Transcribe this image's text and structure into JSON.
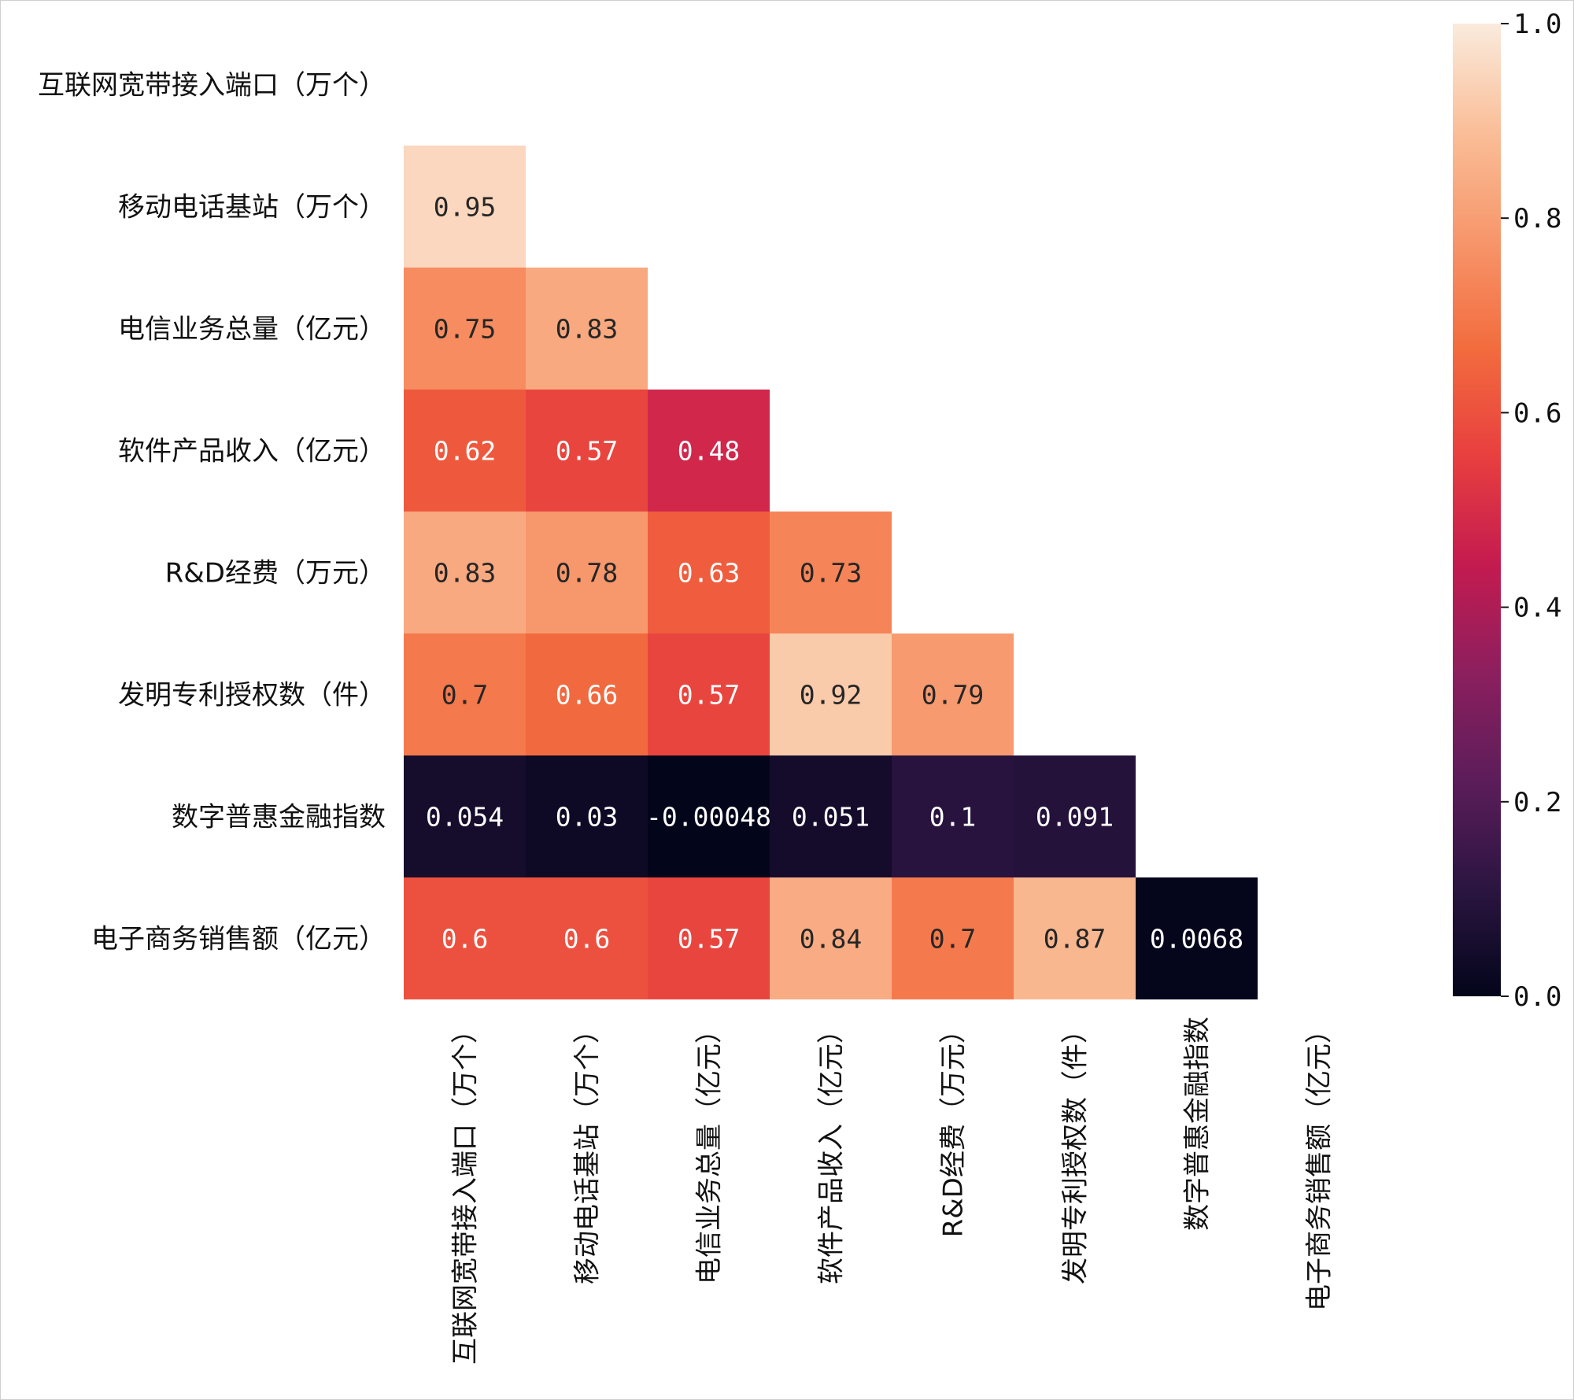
{
  "chart_data": {
    "type": "heatmap",
    "title": "",
    "xlabel": "",
    "ylabel": "",
    "variables": [
      "互联网宽带接入端口（万个）",
      "移动电话基站（万个）",
      "电信业务总量（亿元）",
      "软件产品收入（亿元）",
      "R&D经费（万元）",
      "发明专利授权数（件）",
      "数字普惠金融指数",
      "电子商务销售额（亿元）"
    ],
    "mask": "upper-triangle-and-diagonal",
    "values": [
      [],
      [
        0.95
      ],
      [
        0.75,
        0.83
      ],
      [
        0.62,
        0.57,
        0.48
      ],
      [
        0.83,
        0.78,
        0.63,
        0.73
      ],
      [
        0.7,
        0.66,
        0.57,
        0.92,
        0.79
      ],
      [
        0.054,
        0.03,
        -0.00048,
        0.051,
        0.1,
        0.091
      ],
      [
        0.6,
        0.6,
        0.57,
        0.84,
        0.7,
        0.87,
        0.0068
      ]
    ],
    "annotations": [
      [],
      [
        "0.95"
      ],
      [
        "0.75",
        "0.83"
      ],
      [
        "0.62",
        "0.57",
        "0.48"
      ],
      [
        "0.83",
        "0.78",
        "0.63",
        "0.73"
      ],
      [
        "0.7",
        "0.66",
        "0.57",
        "0.92",
        "0.79"
      ],
      [
        "0.054",
        "0.03",
        "-0.00048",
        "0.051",
        "0.1",
        "0.091"
      ],
      [
        "0.6",
        "0.6",
        "0.57",
        "0.84",
        "0.7",
        "0.87",
        "0.0068"
      ]
    ],
    "colorbar": {
      "range": [
        0,
        1
      ],
      "ticks": [
        0.0,
        0.2,
        0.4,
        0.6,
        0.8,
        1.0
      ],
      "tick_labels": [
        "0.0",
        "0.2",
        "0.4",
        "0.6",
        "0.8",
        "1.0"
      ],
      "colormap": "rocket",
      "colors": [
        "#03051a",
        "#2b1541",
        "#5c1d5a",
        "#8d1f5e",
        "#c41b50",
        "#e83f3f",
        "#f26c3e",
        "#f7966b",
        "#fabe98",
        "#faebdd"
      ]
    },
    "grid": false
  }
}
